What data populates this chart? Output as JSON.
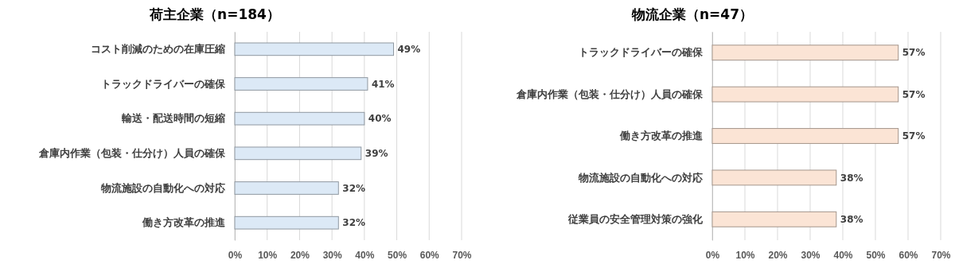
{
  "chart_data": [
    {
      "type": "bar",
      "orientation": "horizontal",
      "title": "荷主企業（n=184）",
      "categories": [
        "コスト削減のための在庫圧縮",
        "トラックドライバーの確保",
        "輸送・配送時間の短縮",
        "倉庫内作業（包装・仕分け）人員の確保",
        "物流施設の自動化への対応",
        "働き方改革の推進"
      ],
      "values": [
        49,
        41,
        40,
        39,
        32,
        32
      ],
      "value_labels": [
        "49%",
        "41%",
        "40%",
        "39%",
        "32%",
        "32%"
      ],
      "color": "#dce9f6",
      "xlim": [
        0,
        70
      ],
      "xticks": [
        {
          "value": 0,
          "label": "0%"
        },
        {
          "value": 10,
          "label": "10%"
        },
        {
          "value": 20,
          "label": "20%"
        },
        {
          "value": 30,
          "label": "30%"
        },
        {
          "value": 40,
          "label": "40%"
        },
        {
          "value": 50,
          "label": "50%"
        },
        {
          "value": 60,
          "label": "60%"
        },
        {
          "value": 70,
          "label": "70%"
        }
      ],
      "grid": "x"
    },
    {
      "type": "bar",
      "orientation": "horizontal",
      "title": "物流企業（n=47）",
      "categories": [
        "トラックドライバーの確保",
        "倉庫内作業（包装・仕分け）人員の確保",
        "働き方改革の推進",
        "物流施設の自動化への対応",
        "従業員の安全管理対策の強化"
      ],
      "values": [
        57,
        57,
        57,
        38,
        38
      ],
      "value_labels": [
        "57%",
        "57%",
        "57%",
        "38%",
        "38%"
      ],
      "color": "#fbe4d5",
      "xlim": [
        0,
        70
      ],
      "xticks": [
        {
          "value": 0,
          "label": "0%"
        },
        {
          "value": 10,
          "label": "10%"
        },
        {
          "value": 20,
          "label": "20%"
        },
        {
          "value": 30,
          "label": "30%"
        },
        {
          "value": 40,
          "label": "40%"
        },
        {
          "value": 50,
          "label": "50%"
        },
        {
          "value": 60,
          "label": "60%"
        },
        {
          "value": 70,
          "label": "70%"
        }
      ],
      "grid": "x"
    }
  ]
}
